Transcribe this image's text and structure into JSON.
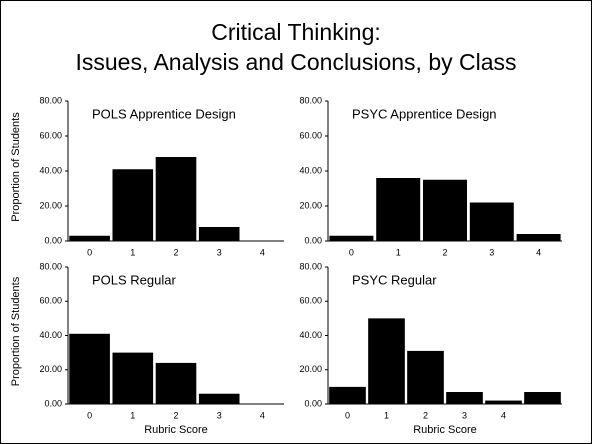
{
  "slide": {
    "title": "Critical Thinking:",
    "subtitle": "Issues, Analysis and Conclusions, by Class"
  },
  "chart_data": [
    {
      "type": "bar",
      "title": "POLS Apprentice Design",
      "y_label": "Proportion of Students",
      "categories": [
        "0",
        "1",
        "2",
        "3",
        "4"
      ],
      "values": [
        3,
        41,
        48,
        8,
        0
      ],
      "color": "#000000",
      "ylim": [
        0,
        80
      ],
      "yticks": [
        {
          "value": 0,
          "label": "0.00"
        },
        {
          "value": 20,
          "label": "20.00"
        },
        {
          "value": 40,
          "label": "40.00"
        },
        {
          "value": 60,
          "label": "60.00"
        },
        {
          "value": 80,
          "label": "80.00"
        }
      ]
    },
    {
      "type": "bar",
      "title": "PSYC Apprentice Design",
      "categories": [
        "0",
        "1",
        "2",
        "3",
        "4"
      ],
      "values": [
        3,
        36,
        35,
        22,
        4
      ],
      "color": "#000000",
      "ylim": [
        0,
        80
      ],
      "yticks": [
        {
          "value": 0,
          "label": "0.00"
        },
        {
          "value": 20,
          "label": "20.00"
        },
        {
          "value": 40,
          "label": "40.00"
        },
        {
          "value": 60,
          "label": "60.00"
        },
        {
          "value": 80,
          "label": "80.00"
        }
      ]
    },
    {
      "type": "bar",
      "title": "POLS Regular",
      "y_label": "Proportion of Students",
      "x_label": "Rubric Score",
      "categories": [
        "0",
        "1",
        "2",
        "3",
        "4"
      ],
      "values": [
        41,
        30,
        24,
        6,
        0
      ],
      "color": "#000000",
      "ylim": [
        0,
        80
      ],
      "yticks": [
        {
          "value": 0,
          "label": "0.00"
        },
        {
          "value": 20,
          "label": "20.00"
        },
        {
          "value": 40,
          "label": "40.00"
        },
        {
          "value": 60,
          "label": "60.00"
        },
        {
          "value": 80,
          "label": "80.00"
        }
      ]
    },
    {
      "type": "bar",
      "title": "PSYC Regular",
      "x_label": "Rubric Score",
      "categories": [
        "0",
        "1",
        "2",
        "3",
        "4",
        null
      ],
      "values": [
        10,
        50,
        31,
        7,
        2,
        7
      ],
      "color": "#000000",
      "ylim": [
        0,
        80
      ],
      "yticks": [
        {
          "value": 0,
          "label": "0.00"
        },
        {
          "value": 20,
          "label": "20.00"
        },
        {
          "value": 40,
          "label": "40.00"
        },
        {
          "value": 60,
          "label": "60.00"
        },
        {
          "value": 80,
          "label": "80.00"
        }
      ]
    }
  ]
}
